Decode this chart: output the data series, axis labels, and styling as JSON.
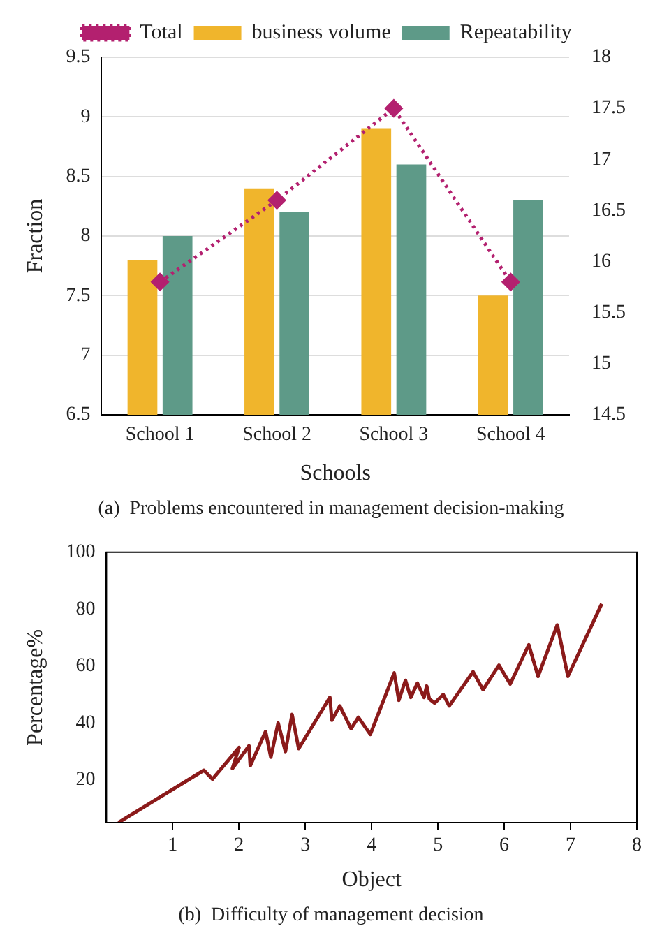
{
  "chart_data": [
    {
      "type": "bar",
      "categories": [
        "School 1",
        "School 2",
        "School 3",
        "School 4"
      ],
      "xlabel": "Schools",
      "ylabel": "Fraction",
      "series": [
        {
          "name": "business volume",
          "color": "#f0b52c",
          "values": [
            7.8,
            8.4,
            8.9,
            7.5
          ]
        },
        {
          "name": "Repeatability",
          "color": "#5e9a88",
          "values": [
            8.0,
            8.2,
            8.6,
            8.3
          ]
        },
        {
          "name": "Total",
          "type": "line",
          "axis": "y2",
          "color": "#b3206f",
          "values": [
            15.8,
            16.6,
            17.5,
            15.8
          ],
          "marker": "diamond",
          "line_style": "dotted"
        }
      ],
      "ylim": [
        6.5,
        9.5
      ],
      "yticks": [
        6.5,
        7,
        7.5,
        8,
        8.5,
        9,
        9.5
      ],
      "y2lim": [
        14.5,
        18
      ],
      "y2ticks": [
        14.5,
        15,
        15.5,
        16,
        16.5,
        17,
        17.5,
        18
      ],
      "grid": "y",
      "legend": "top",
      "annotations": [
        "(a)  Problems encountered in management decision-making"
      ]
    },
    {
      "type": "line",
      "xlabel": "Object",
      "ylabel": "Percentage%",
      "color": "#8b1a1a",
      "x": [
        0.18,
        1.47,
        1.6,
        2.0,
        1.9,
        2.15,
        2.17,
        2.4,
        2.48,
        2.59,
        2.7,
        2.8,
        2.9,
        3.37,
        3.4,
        3.52,
        3.69,
        3.8,
        3.98,
        4.34,
        4.41,
        4.51,
        4.59,
        4.69,
        4.79,
        4.83,
        4.87,
        4.95,
        5.08,
        5.17,
        5.53,
        5.68,
        5.92,
        6.09,
        6.37,
        6.51,
        6.8,
        6.96,
        7.47
      ],
      "values": [
        5,
        23.4,
        20.3,
        31.4,
        24,
        32,
        25,
        37,
        28,
        40,
        30,
        43,
        31,
        49,
        41,
        46,
        38,
        42,
        36,
        57.6,
        48,
        55,
        49,
        54,
        49,
        53,
        48.5,
        47,
        50,
        46,
        58,
        51.7,
        60.3,
        53.7,
        67.5,
        56.4,
        74.5,
        56.4,
        81.9
      ],
      "xlim": [
        0,
        8
      ],
      "xticks": [
        1,
        2,
        3,
        4,
        5,
        6,
        7,
        8
      ],
      "ylim": [
        5,
        100
      ],
      "yticks": [
        20,
        40,
        60,
        80,
        100
      ],
      "annotations": [
        "(b)  Difficulty of management decision"
      ]
    }
  ]
}
